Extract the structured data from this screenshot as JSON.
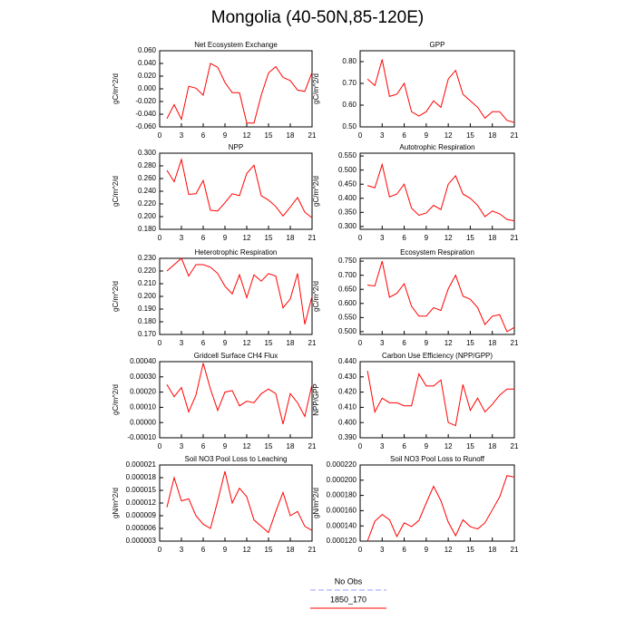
{
  "title": "Mongolia (40-50N,85-120E)",
  "legend": [
    {
      "name": "No Obs",
      "color": "#9999ff",
      "dashed": true
    },
    {
      "name": "1850_170",
      "color": "#ff0000",
      "dashed": false
    }
  ],
  "chart_data": [
    {
      "type": "line",
      "title": "Net Ecosystem Exchange",
      "ylabel": "gC/m^2/d",
      "color": "#ff0000",
      "x": [
        1,
        2,
        3,
        4,
        5,
        6,
        7,
        8,
        9,
        10,
        11,
        12,
        13,
        14,
        15,
        16,
        17,
        18,
        19,
        20,
        21
      ],
      "values": [
        -0.047,
        -0.025,
        -0.048,
        0.004,
        0.001,
        -0.01,
        0.04,
        0.034,
        0.01,
        -0.006,
        -0.006,
        -0.054,
        -0.054,
        -0.01,
        0.025,
        0.035,
        0.018,
        0.013,
        -0.002,
        -0.004,
        0.026
      ],
      "xlim": [
        0,
        21
      ],
      "xticks": [
        0,
        3,
        6,
        9,
        12,
        15,
        18,
        21
      ],
      "ylim": [
        -0.06,
        0.06
      ],
      "yticks": [
        {
          "value": -0.06,
          "label": "-0.060"
        },
        {
          "value": -0.04,
          "label": "-0.040"
        },
        {
          "value": -0.02,
          "label": "-0.020"
        },
        {
          "value": 0,
          "label": "0.000"
        },
        {
          "value": 0.02,
          "label": "0.020"
        },
        {
          "value": 0.04,
          "label": "0.040"
        },
        {
          "value": 0.06,
          "label": "0.060"
        }
      ]
    },
    {
      "type": "line",
      "title": "GPP",
      "ylabel": "gC/m^2/d",
      "color": "#ff0000",
      "x": [
        1,
        2,
        3,
        4,
        5,
        6,
        7,
        8,
        9,
        10,
        11,
        12,
        13,
        14,
        15,
        16,
        17,
        18,
        19,
        20,
        21
      ],
      "values": [
        0.72,
        0.69,
        0.81,
        0.64,
        0.65,
        0.7,
        0.57,
        0.55,
        0.57,
        0.62,
        0.59,
        0.72,
        0.76,
        0.65,
        0.62,
        0.59,
        0.54,
        0.57,
        0.57,
        0.53,
        0.52
      ],
      "xlim": [
        0,
        21
      ],
      "xticks": [
        0,
        3,
        6,
        9,
        12,
        15,
        18,
        21
      ],
      "ylim": [
        0.5,
        0.85
      ],
      "yticks": [
        {
          "value": 0.5,
          "label": "0.50"
        },
        {
          "value": 0.6,
          "label": "0.60"
        },
        {
          "value": 0.7,
          "label": "0.70"
        },
        {
          "value": 0.8,
          "label": "0.80"
        }
      ]
    },
    {
      "type": "line",
      "title": "NPP",
      "ylabel": "gC/m^2/d",
      "color": "#ff0000",
      "x": [
        1,
        2,
        3,
        4,
        5,
        6,
        7,
        8,
        9,
        10,
        11,
        12,
        13,
        14,
        15,
        16,
        17,
        18,
        19,
        20,
        21
      ],
      "values": [
        0.273,
        0.255,
        0.29,
        0.235,
        0.236,
        0.257,
        0.21,
        0.209,
        0.222,
        0.236,
        0.233,
        0.268,
        0.281,
        0.233,
        0.226,
        0.216,
        0.201,
        0.215,
        0.23,
        0.207,
        0.198
      ],
      "xlim": [
        0,
        21
      ],
      "xticks": [
        0,
        3,
        6,
        9,
        12,
        15,
        18,
        21
      ],
      "ylim": [
        0.18,
        0.3
      ],
      "yticks": [
        {
          "value": 0.18,
          "label": "0.180"
        },
        {
          "value": 0.2,
          "label": "0.200"
        },
        {
          "value": 0.22,
          "label": "0.220"
        },
        {
          "value": 0.24,
          "label": "0.240"
        },
        {
          "value": 0.26,
          "label": "0.260"
        },
        {
          "value": 0.28,
          "label": "0.280"
        },
        {
          "value": 0.3,
          "label": "0.300"
        }
      ]
    },
    {
      "type": "line",
      "title": "Autotrophic Respiration",
      "ylabel": "gC/m^2/d",
      "color": "#ff0000",
      "x": [
        1,
        2,
        3,
        4,
        5,
        6,
        7,
        8,
        9,
        10,
        11,
        12,
        13,
        14,
        15,
        16,
        17,
        18,
        19,
        20,
        21
      ],
      "values": [
        0.445,
        0.437,
        0.52,
        0.405,
        0.415,
        0.45,
        0.365,
        0.34,
        0.348,
        0.375,
        0.36,
        0.45,
        0.48,
        0.415,
        0.4,
        0.375,
        0.335,
        0.355,
        0.345,
        0.325,
        0.32
      ],
      "xlim": [
        0,
        21
      ],
      "xticks": [
        0,
        3,
        6,
        9,
        12,
        15,
        18,
        21
      ],
      "ylim": [
        0.29,
        0.56
      ],
      "yticks": [
        {
          "value": 0.3,
          "label": "0.300"
        },
        {
          "value": 0.35,
          "label": "0.350"
        },
        {
          "value": 0.4,
          "label": "0.400"
        },
        {
          "value": 0.45,
          "label": "0.450"
        },
        {
          "value": 0.5,
          "label": "0.500"
        },
        {
          "value": 0.55,
          "label": "0.550"
        }
      ]
    },
    {
      "type": "line",
      "title": "Heterotrophic Respiration",
      "ylabel": "gC/m^2/d",
      "color": "#ff0000",
      "x": [
        1,
        2,
        3,
        4,
        5,
        6,
        7,
        8,
        9,
        10,
        11,
        12,
        13,
        14,
        15,
        16,
        17,
        18,
        19,
        20,
        21
      ],
      "values": [
        0.22,
        0.225,
        0.23,
        0.216,
        0.225,
        0.225,
        0.223,
        0.218,
        0.208,
        0.202,
        0.217,
        0.199,
        0.217,
        0.212,
        0.218,
        0.216,
        0.191,
        0.198,
        0.218,
        0.178,
        0.2
      ],
      "xlim": [
        0,
        21
      ],
      "xticks": [
        0,
        3,
        6,
        9,
        12,
        15,
        18,
        21
      ],
      "ylim": [
        0.17,
        0.23
      ],
      "yticks": [
        {
          "value": 0.17,
          "label": "0.170"
        },
        {
          "value": 0.18,
          "label": "0.180"
        },
        {
          "value": 0.19,
          "label": "0.190"
        },
        {
          "value": 0.2,
          "label": "0.200"
        },
        {
          "value": 0.21,
          "label": "0.210"
        },
        {
          "value": 0.22,
          "label": "0.220"
        },
        {
          "value": 0.23,
          "label": "0.230"
        }
      ]
    },
    {
      "type": "line",
      "title": "Ecosystem Respiration",
      "ylabel": "gC/m^2/d",
      "color": "#ff0000",
      "x": [
        1,
        2,
        3,
        4,
        5,
        6,
        7,
        8,
        9,
        10,
        11,
        12,
        13,
        14,
        15,
        16,
        17,
        18,
        19,
        20,
        21
      ],
      "values": [
        0.665,
        0.662,
        0.75,
        0.622,
        0.636,
        0.67,
        0.59,
        0.555,
        0.555,
        0.585,
        0.575,
        0.652,
        0.7,
        0.626,
        0.615,
        0.585,
        0.525,
        0.555,
        0.56,
        0.5,
        0.515
      ],
      "xlim": [
        0,
        21
      ],
      "xticks": [
        0,
        3,
        6,
        9,
        12,
        15,
        18,
        21
      ],
      "ylim": [
        0.49,
        0.76
      ],
      "yticks": [
        {
          "value": 0.5,
          "label": "0.500"
        },
        {
          "value": 0.55,
          "label": "0.550"
        },
        {
          "value": 0.6,
          "label": "0.600"
        },
        {
          "value": 0.65,
          "label": "0.650"
        },
        {
          "value": 0.7,
          "label": "0.700"
        },
        {
          "value": 0.75,
          "label": "0.750"
        }
      ]
    },
    {
      "type": "line",
      "title": "Gridcell Surface CH4 Flux",
      "ylabel": "gC/m^2/d",
      "color": "#ff0000",
      "x": [
        1,
        2,
        3,
        4,
        5,
        6,
        7,
        8,
        9,
        10,
        11,
        12,
        13,
        14,
        15,
        16,
        17,
        18,
        19,
        20,
        21
      ],
      "values": [
        0.00025,
        0.00017,
        0.00023,
        7e-05,
        0.00018,
        0.00039,
        0.00022,
        8e-05,
        0.0002,
        0.00021,
        0.00011,
        0.00014,
        0.00013,
        0.00019,
        0.00022,
        0.00019,
        -1e-05,
        0.00019,
        0.00013,
        4e-05,
        0.00025
      ],
      "xlim": [
        0,
        21
      ],
      "xticks": [
        0,
        3,
        6,
        9,
        12,
        15,
        18,
        21
      ],
      "ylim": [
        -0.0001,
        0.0004
      ],
      "yticks": [
        {
          "value": -0.0001,
          "label": "-0.00010"
        },
        {
          "value": 0,
          "label": "0.00000"
        },
        {
          "value": 0.0001,
          "label": "0.00010"
        },
        {
          "value": 0.0002,
          "label": "0.00020"
        },
        {
          "value": 0.0003,
          "label": "0.00030"
        },
        {
          "value": 0.0004,
          "label": "0.00040"
        }
      ]
    },
    {
      "type": "line",
      "title": "Carbon Use Efficiency (NPP/GPP)",
      "ylabel": "NPP/GPP",
      "color": "#ff0000",
      "x": [
        1,
        2,
        3,
        4,
        5,
        6,
        7,
        8,
        9,
        10,
        11,
        12,
        13,
        14,
        15,
        16,
        17,
        18,
        19,
        20,
        21
      ],
      "values": [
        0.434,
        0.407,
        0.416,
        0.413,
        0.413,
        0.411,
        0.411,
        0.432,
        0.424,
        0.424,
        0.428,
        0.4,
        0.398,
        0.425,
        0.408,
        0.416,
        0.407,
        0.412,
        0.418,
        0.422,
        0.422
      ],
      "xlim": [
        0,
        21
      ],
      "xticks": [
        0,
        3,
        6,
        9,
        12,
        15,
        18,
        21
      ],
      "ylim": [
        0.39,
        0.44
      ],
      "yticks": [
        {
          "value": 0.39,
          "label": "0.390"
        },
        {
          "value": 0.4,
          "label": "0.400"
        },
        {
          "value": 0.41,
          "label": "0.410"
        },
        {
          "value": 0.42,
          "label": "0.420"
        },
        {
          "value": 0.43,
          "label": "0.430"
        },
        {
          "value": 0.44,
          "label": "0.440"
        }
      ]
    },
    {
      "type": "line",
      "title": "Soil NO3 Pool Loss to Leaching",
      "ylabel": "gN/m^2/d",
      "color": "#ff0000",
      "x": [
        1,
        2,
        3,
        4,
        5,
        6,
        7,
        8,
        9,
        10,
        11,
        12,
        13,
        14,
        15,
        16,
        17,
        18,
        19,
        20,
        21
      ],
      "values": [
        1.1e-05,
        1.8e-05,
        1.25e-05,
        1.3e-05,
        9e-06,
        7e-06,
        6e-06,
        1.25e-05,
        1.95e-05,
        1.2e-05,
        1.55e-05,
        1.35e-05,
        8e-06,
        6.5e-06,
        5e-06,
        1e-05,
        1.45e-05,
        9e-06,
        1e-05,
        6.5e-06,
        5.5e-06
      ],
      "xlim": [
        0,
        21
      ],
      "xticks": [
        0,
        3,
        6,
        9,
        12,
        15,
        18,
        21
      ],
      "ylim": [
        3e-06,
        2.1e-05
      ],
      "yticks": [
        {
          "value": 3e-06,
          "label": "0.000003"
        },
        {
          "value": 6e-06,
          "label": "0.000006"
        },
        {
          "value": 9e-06,
          "label": "0.000009"
        },
        {
          "value": 1.2e-05,
          "label": "0.000012"
        },
        {
          "value": 1.5e-05,
          "label": "0.000015"
        },
        {
          "value": 1.8e-05,
          "label": "0.000018"
        },
        {
          "value": 2.1e-05,
          "label": "0.000021"
        }
      ]
    },
    {
      "type": "line",
      "title": "Soil NO3 Pool Loss to Runoff",
      "ylabel": "gN/m^2/d",
      "color": "#ff0000",
      "x": [
        1,
        2,
        3,
        4,
        5,
        6,
        7,
        8,
        9,
        10,
        11,
        12,
        13,
        14,
        15,
        16,
        17,
        18,
        19,
        20,
        21
      ],
      "values": [
        0.00012,
        0.000146,
        0.000155,
        0.000148,
        0.000126,
        0.000144,
        0.000139,
        0.000147,
        0.00017,
        0.000192,
        0.000173,
        0.000145,
        0.000127,
        0.000148,
        0.000139,
        0.000136,
        0.000144,
        0.000161,
        0.000178,
        0.000206,
        0.000204
      ],
      "xlim": [
        0,
        21
      ],
      "xticks": [
        0,
        3,
        6,
        9,
        12,
        15,
        18,
        21
      ],
      "ylim": [
        0.00012,
        0.00022
      ],
      "yticks": [
        {
          "value": 0.00012,
          "label": "0.000120"
        },
        {
          "value": 0.00014,
          "label": "0.000140"
        },
        {
          "value": 0.00016,
          "label": "0.000160"
        },
        {
          "value": 0.00018,
          "label": "0.000180"
        },
        {
          "value": 0.0002,
          "label": "0.000200"
        },
        {
          "value": 0.00022,
          "label": "0.000220"
        }
      ]
    }
  ]
}
